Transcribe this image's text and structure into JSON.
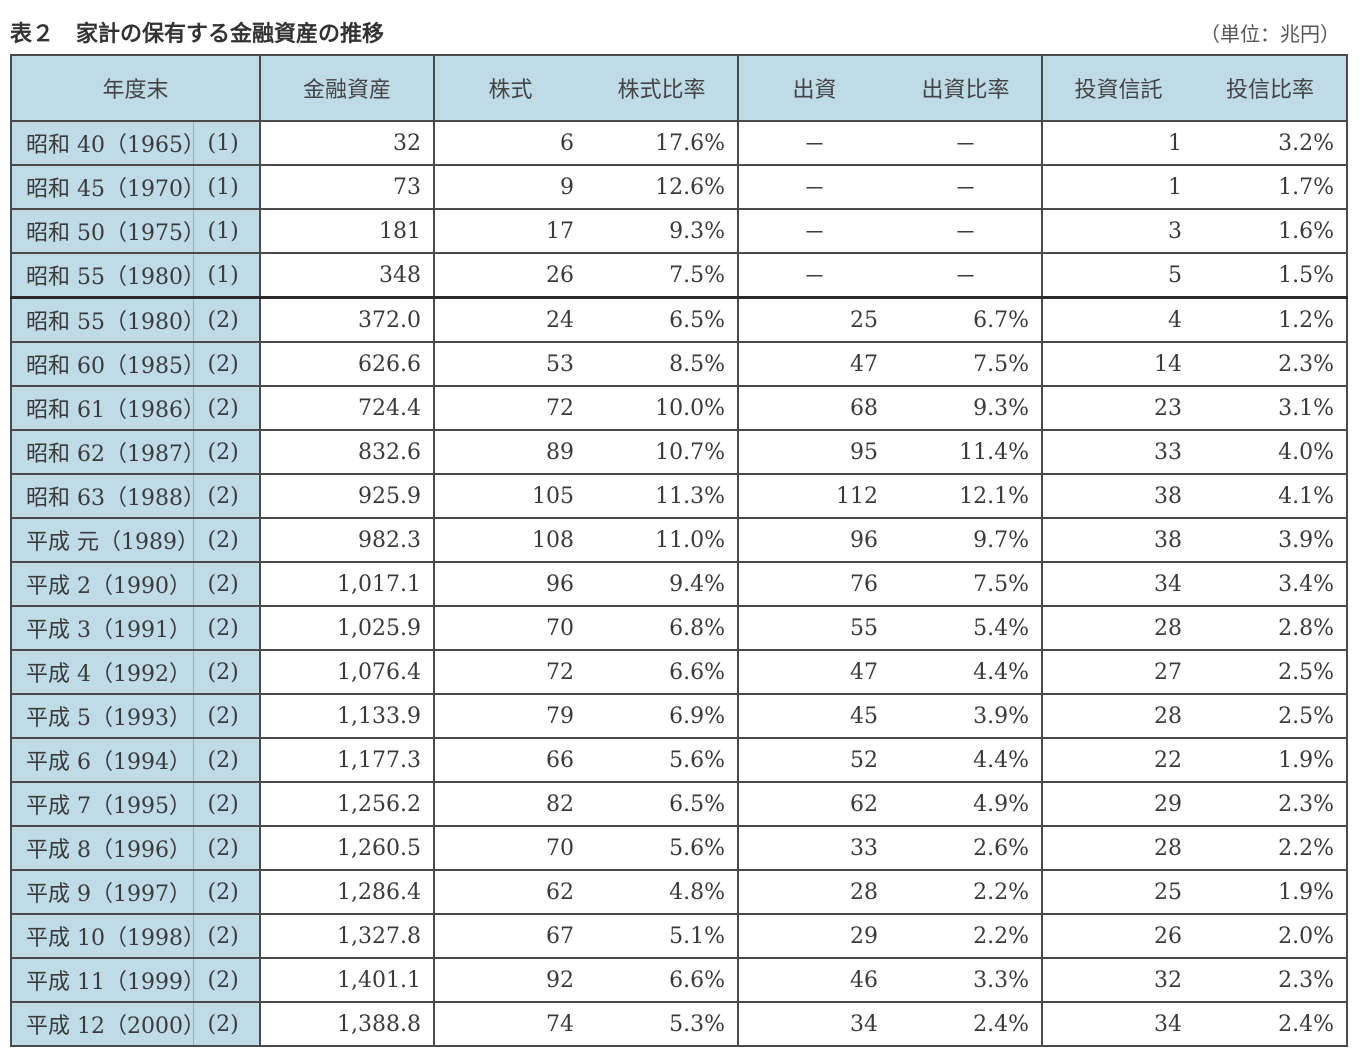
{
  "title": "表２　家計の保有する金融資産の推移",
  "unit": "（単位：兆円）",
  "headers": {
    "year_end": "年度末",
    "financial_assets": "金融資産",
    "stocks": "株式",
    "stock_ratio": "株式比率",
    "investment": "出資",
    "investment_ratio": "出資比率",
    "investment_trust": "投資信託",
    "trust_ratio": "投信比率"
  },
  "rows": [
    {
      "year": "昭和 40（1965）",
      "note": "(1)",
      "assets": "32",
      "stocks": "6",
      "stock_ratio": "17.6%",
      "investment": "－",
      "investment_ratio": "－",
      "trust": "1",
      "trust_ratio": "3.2%"
    },
    {
      "year": "昭和 45（1970）",
      "note": "(1)",
      "assets": "73",
      "stocks": "9",
      "stock_ratio": "12.6%",
      "investment": "－",
      "investment_ratio": "－",
      "trust": "1",
      "trust_ratio": "1.7%"
    },
    {
      "year": "昭和 50（1975）",
      "note": "(1)",
      "assets": "181",
      "stocks": "17",
      "stock_ratio": "9.3%",
      "investment": "－",
      "investment_ratio": "－",
      "trust": "3",
      "trust_ratio": "1.6%"
    },
    {
      "year": "昭和 55（1980）",
      "note": "(1)",
      "assets": "348",
      "stocks": "26",
      "stock_ratio": "7.5%",
      "investment": "－",
      "investment_ratio": "－",
      "trust": "5",
      "trust_ratio": "1.5%"
    },
    {
      "year": "昭和 55（1980）",
      "note": "(2)",
      "assets": "372.0",
      "stocks": "24",
      "stock_ratio": "6.5%",
      "investment": "25",
      "investment_ratio": "6.7%",
      "trust": "4",
      "trust_ratio": "1.2%"
    },
    {
      "year": "昭和 60（1985）",
      "note": "(2)",
      "assets": "626.6",
      "stocks": "53",
      "stock_ratio": "8.5%",
      "investment": "47",
      "investment_ratio": "7.5%",
      "trust": "14",
      "trust_ratio": "2.3%"
    },
    {
      "year": "昭和 61（1986）",
      "note": "(2)",
      "assets": "724.4",
      "stocks": "72",
      "stock_ratio": "10.0%",
      "investment": "68",
      "investment_ratio": "9.3%",
      "trust": "23",
      "trust_ratio": "3.1%"
    },
    {
      "year": "昭和 62（1987）",
      "note": "(2)",
      "assets": "832.6",
      "stocks": "89",
      "stock_ratio": "10.7%",
      "investment": "95",
      "investment_ratio": "11.4%",
      "trust": "33",
      "trust_ratio": "4.0%"
    },
    {
      "year": "昭和 63（1988）",
      "note": "(2)",
      "assets": "925.9",
      "stocks": "105",
      "stock_ratio": "11.3%",
      "investment": "112",
      "investment_ratio": "12.1%",
      "trust": "38",
      "trust_ratio": "4.1%"
    },
    {
      "year": "平成 元（1989）",
      "note": "(2)",
      "assets": "982.3",
      "stocks": "108",
      "stock_ratio": "11.0%",
      "investment": "96",
      "investment_ratio": "9.7%",
      "trust": "38",
      "trust_ratio": "3.9%"
    },
    {
      "year": "平成 2（1990）",
      "note": "(2)",
      "assets": "1,017.1",
      "stocks": "96",
      "stock_ratio": "9.4%",
      "investment": "76",
      "investment_ratio": "7.5%",
      "trust": "34",
      "trust_ratio": "3.4%"
    },
    {
      "year": "平成 3（1991）",
      "note": "(2)",
      "assets": "1,025.9",
      "stocks": "70",
      "stock_ratio": "6.8%",
      "investment": "55",
      "investment_ratio": "5.4%",
      "trust": "28",
      "trust_ratio": "2.8%"
    },
    {
      "year": "平成 4（1992）",
      "note": "(2)",
      "assets": "1,076.4",
      "stocks": "72",
      "stock_ratio": "6.6%",
      "investment": "47",
      "investment_ratio": "4.4%",
      "trust": "27",
      "trust_ratio": "2.5%"
    },
    {
      "year": "平成 5（1993）",
      "note": "(2)",
      "assets": "1,133.9",
      "stocks": "79",
      "stock_ratio": "6.9%",
      "investment": "45",
      "investment_ratio": "3.9%",
      "trust": "28",
      "trust_ratio": "2.5%"
    },
    {
      "year": "平成 6（1994）",
      "note": "(2)",
      "assets": "1,177.3",
      "stocks": "66",
      "stock_ratio": "5.6%",
      "investment": "52",
      "investment_ratio": "4.4%",
      "trust": "22",
      "trust_ratio": "1.9%"
    },
    {
      "year": "平成 7（1995）",
      "note": "(2)",
      "assets": "1,256.2",
      "stocks": "82",
      "stock_ratio": "6.5%",
      "investment": "62",
      "investment_ratio": "4.9%",
      "trust": "29",
      "trust_ratio": "2.3%"
    },
    {
      "year": "平成 8（1996）",
      "note": "(2)",
      "assets": "1,260.5",
      "stocks": "70",
      "stock_ratio": "5.6%",
      "investment": "33",
      "investment_ratio": "2.6%",
      "trust": "28",
      "trust_ratio": "2.2%"
    },
    {
      "year": "平成 9（1997）",
      "note": "(2)",
      "assets": "1,286.4",
      "stocks": "62",
      "stock_ratio": "4.8%",
      "investment": "28",
      "investment_ratio": "2.2%",
      "trust": "25",
      "trust_ratio": "1.9%"
    },
    {
      "year": "平成 10（1998）",
      "note": "(2)",
      "assets": "1,327.8",
      "stocks": "67",
      "stock_ratio": "5.1%",
      "investment": "29",
      "investment_ratio": "2.2%",
      "trust": "26",
      "trust_ratio": "2.0%"
    },
    {
      "year": "平成 11（1999）",
      "note": "(2)",
      "assets": "1,401.1",
      "stocks": "92",
      "stock_ratio": "6.6%",
      "investment": "46",
      "investment_ratio": "3.3%",
      "trust": "32",
      "trust_ratio": "2.3%"
    },
    {
      "year": "平成 12（2000）",
      "note": "(2)",
      "assets": "1,388.8",
      "stocks": "74",
      "stock_ratio": "5.3%",
      "investment": "34",
      "investment_ratio": "2.4%",
      "trust": "34",
      "trust_ratio": "2.4%"
    }
  ]
}
